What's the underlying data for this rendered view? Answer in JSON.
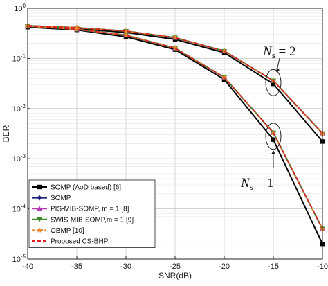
{
  "chart_data": {
    "type": "line",
    "xlabel": "SNR(dB)",
    "ylabel": "BER",
    "x": [
      -40,
      -35,
      -30,
      -25,
      -20,
      -15,
      -10
    ],
    "xlim": [
      -40,
      -10
    ],
    "ylim": [
      1e-05,
      1
    ],
    "yscale": "log",
    "grid": true,
    "legend_position": "bottom-left",
    "xticks": [
      "-40",
      "-35",
      "-30",
      "-25",
      "-20",
      "-15",
      "-10"
    ],
    "yticks": [
      {
        "base": "10",
        "exp": "0",
        "value": 1
      },
      {
        "base": "10",
        "exp": "-1",
        "value": 0.1
      },
      {
        "base": "10",
        "exp": "-2",
        "value": 0.01
      },
      {
        "base": "10",
        "exp": "-3",
        "value": 0.001
      },
      {
        "base": "10",
        "exp": "-4",
        "value": 0.0001
      },
      {
        "base": "10",
        "exp": "-5",
        "value": 1e-05
      }
    ],
    "series": [
      {
        "name": "SOMP (AoD based) [6]",
        "color": "#000000",
        "marker": "square",
        "dash": "solid",
        "groups": [
          [
            0.42,
            0.37,
            0.27,
            0.15,
            0.038,
            0.0024,
            2e-05
          ],
          [
            0.43,
            0.39,
            0.33,
            0.24,
            0.13,
            0.031,
            0.0022
          ]
        ]
      },
      {
        "name": "SOMP",
        "color": "#1a237e",
        "marker": "diamond",
        "dash": "solid",
        "groups": [
          [
            0.44,
            0.38,
            0.29,
            0.16,
            0.042,
            0.0033,
            4e-05
          ],
          [
            0.45,
            0.41,
            0.35,
            0.26,
            0.14,
            0.036,
            0.0032
          ]
        ]
      },
      {
        "name": "PIS-MIB-SOMP, m = 1 [8]",
        "color": "#b03ab0",
        "marker": "triangle-up",
        "dash": "solid",
        "groups": [
          [
            0.44,
            0.38,
            0.29,
            0.16,
            0.042,
            0.0033,
            4e-05
          ],
          [
            0.45,
            0.41,
            0.35,
            0.26,
            0.14,
            0.036,
            0.0032
          ]
        ]
      },
      {
        "name": "SWIS-MIB-SOMP,m = 1 [9]",
        "color": "#3a8a2a",
        "marker": "triangle-down",
        "dash": "solid",
        "groups": [
          [
            0.44,
            0.38,
            0.29,
            0.16,
            0.042,
            0.0033,
            4e-05
          ],
          [
            0.45,
            0.41,
            0.35,
            0.26,
            0.14,
            0.036,
            0.0032
          ]
        ]
      },
      {
        "name": "OBMP [10]",
        "color": "#e8892b",
        "marker": "star",
        "dash": "dashdot",
        "groups": [
          [
            0.44,
            0.38,
            0.29,
            0.16,
            0.042,
            0.0033,
            4e-05
          ],
          [
            0.45,
            0.41,
            0.35,
            0.26,
            0.14,
            0.036,
            0.0032
          ]
        ]
      },
      {
        "name": "Proposed CS-BHP",
        "color": "#e02020",
        "marker": "none",
        "dash": "dashed",
        "groups": [
          [
            0.44,
            0.38,
            0.29,
            0.16,
            0.042,
            0.0033,
            4e-05
          ],
          [
            0.45,
            0.41,
            0.35,
            0.26,
            0.14,
            0.036,
            0.0032
          ]
        ]
      }
    ],
    "annotations": [
      {
        "sym": "N",
        "sub": "s",
        "rest": " = 2",
        "at_x": -15,
        "at_y": 0.033
      },
      {
        "sym": "N",
        "sub": "s",
        "rest": " = 1",
        "at_x": -15,
        "at_y": 0.0028
      }
    ]
  }
}
